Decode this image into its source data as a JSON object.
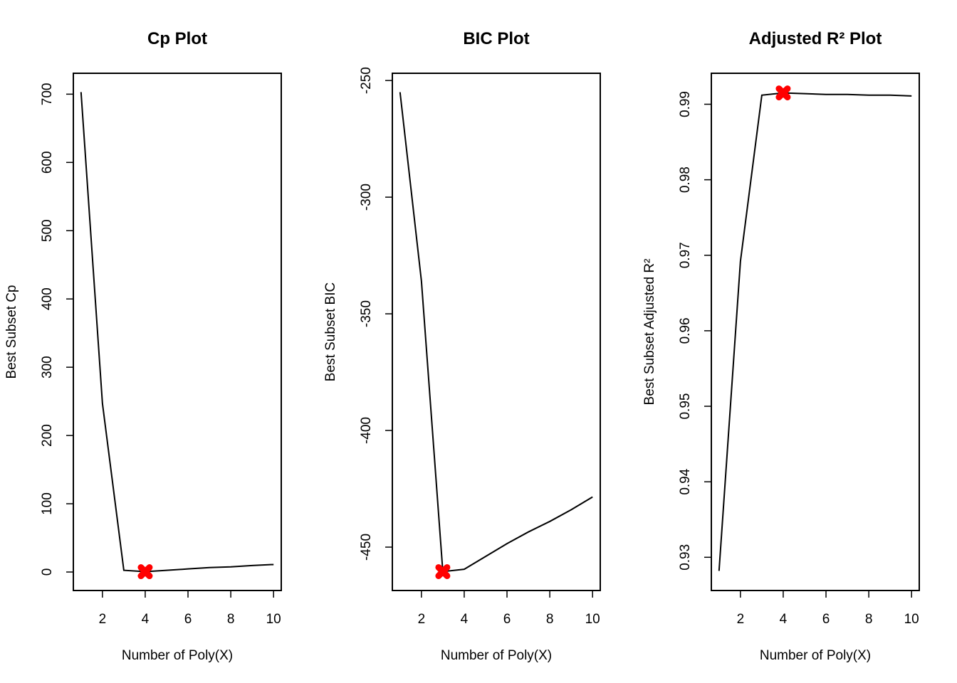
{
  "chart_data": [
    {
      "type": "line",
      "title": "Cp Plot",
      "xlabel": "Number of Poly(X)",
      "ylabel": "Best Subset Cp",
      "x": [
        1,
        2,
        3,
        4,
        5,
        6,
        7,
        8,
        9,
        10
      ],
      "values": [
        703,
        247,
        2.5,
        0.5,
        2.5,
        4.5,
        6.5,
        7.5,
        9.5,
        11
      ],
      "xticks": [
        2,
        4,
        6,
        8,
        10
      ],
      "xtick_labels": [
        "2",
        "4",
        "6",
        "8",
        "10"
      ],
      "yticks": [
        0,
        100,
        200,
        300,
        400,
        500,
        600,
        700
      ],
      "ytick_labels": [
        "0",
        "100",
        "200",
        "300",
        "400",
        "500",
        "600",
        "700"
      ],
      "xlim": [
        0.64,
        10.36
      ],
      "ylim": [
        -27.1,
        730.6
      ],
      "highlight": {
        "x": 4,
        "y": 0.5,
        "color": "#ff0000"
      }
    },
    {
      "type": "line",
      "title": "BIC Plot",
      "xlabel": "Number of Poly(X)",
      "ylabel": "Best Subset BIC",
      "x": [
        1,
        2,
        3,
        4,
        5,
        6,
        7,
        8,
        9,
        10
      ],
      "values": [
        -255,
        -336,
        -460.5,
        -459.5,
        -454,
        -448.5,
        -443.5,
        -439,
        -434,
        -428.5
      ],
      "xticks": [
        2,
        4,
        6,
        8,
        10
      ],
      "xtick_labels": [
        "2",
        "4",
        "6",
        "8",
        "10"
      ],
      "yticks": [
        -450,
        -400,
        -350,
        -300,
        -250
      ],
      "ytick_labels": [
        "-450",
        "-400",
        "-350",
        "-300",
        "-250"
      ],
      "xlim": [
        0.64,
        10.36
      ],
      "ylim": [
        -468.6,
        -246.9
      ],
      "highlight": {
        "x": 3,
        "y": -460.5,
        "color": "#ff0000"
      }
    },
    {
      "type": "line",
      "title": "Adjusted R² Plot",
      "xlabel": "Number of Poly(X)",
      "ylabel": "Best Subset Adjusted R²",
      "x": [
        1,
        2,
        3,
        4,
        5,
        6,
        7,
        8,
        9,
        10
      ],
      "values": [
        0.9282,
        0.9692,
        0.9912,
        0.9915,
        0.9914,
        0.9913,
        0.9913,
        0.9912,
        0.9912,
        0.9911
      ],
      "xticks": [
        2,
        4,
        6,
        8,
        10
      ],
      "xtick_labels": [
        "2",
        "4",
        "6",
        "8",
        "10"
      ],
      "yticks": [
        0.93,
        0.94,
        0.95,
        0.96,
        0.97,
        0.98,
        0.99
      ],
      "ytick_labels": [
        "0.93",
        "0.94",
        "0.95",
        "0.96",
        "0.97",
        "0.98",
        "0.99"
      ],
      "xlim": [
        0.64,
        10.36
      ],
      "ylim": [
        0.9256,
        0.9941
      ],
      "highlight": {
        "x": 4,
        "y": 0.9915,
        "color": "#ff0000"
      }
    }
  ]
}
